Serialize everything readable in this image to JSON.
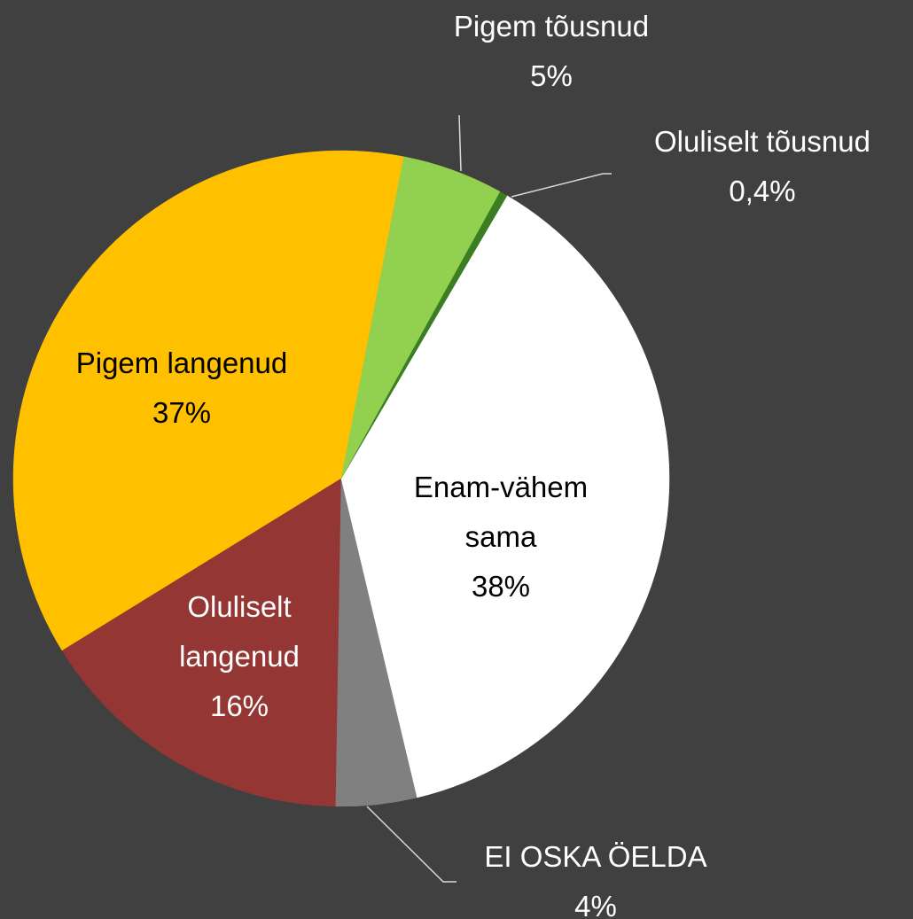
{
  "chart_data": {
    "type": "pie",
    "categories": [
      "Pigem tõusnud",
      "Oluliselt tõusnud",
      "Enam-vähem sama",
      "EI OSKA ÖELDA",
      "Oluliselt langenud",
      "Pigem langenud"
    ],
    "values": [
      5,
      0.4,
      38,
      4,
      16,
      37
    ],
    "value_labels": [
      "5%",
      "0,4%",
      "38%",
      "4%",
      "16%",
      "37%"
    ],
    "colors": [
      "#92d050",
      "#3a7d22",
      "#ffffff",
      "#808080",
      "#943634",
      "#ffc000"
    ]
  }
}
